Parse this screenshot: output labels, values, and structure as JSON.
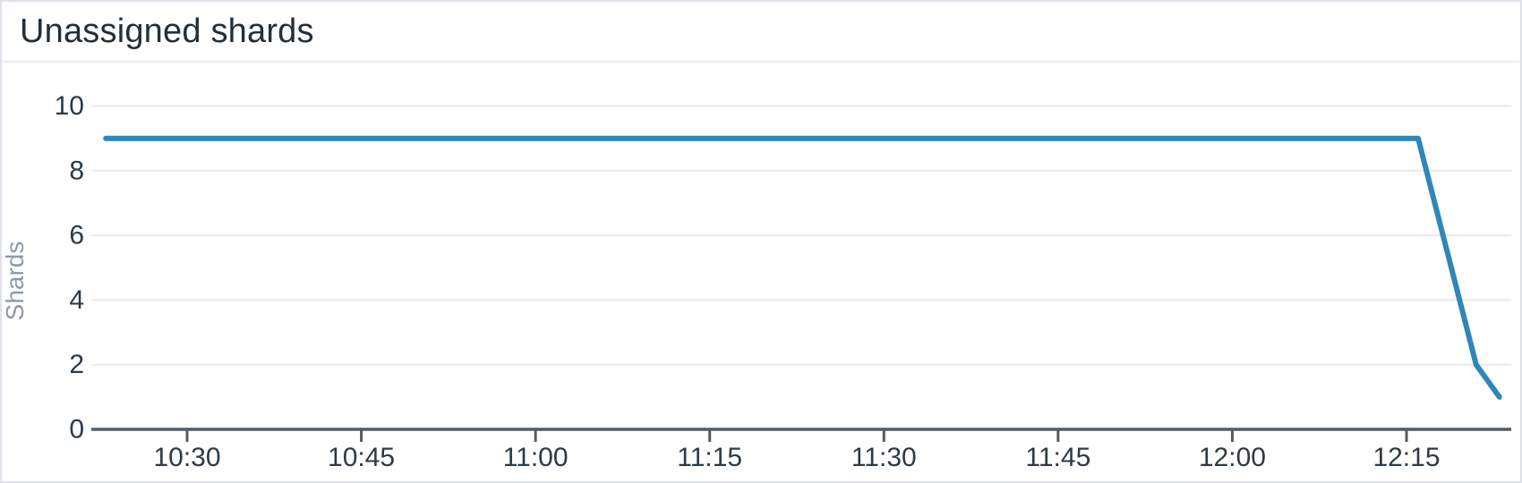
{
  "header": {
    "title": "Unassigned shards"
  },
  "colors": {
    "line": "#2e87b8",
    "axis": "#545b64",
    "grid": "#e9eaec",
    "tick_label": "#2c3a46",
    "axis_title": "#8e99a5",
    "card_title": "#232f3a",
    "card_border": "#e0e1ea",
    "header_divider": "#ebecf1",
    "background": "#ffffff"
  },
  "chart_data": {
    "type": "line",
    "title": "Unassigned shards",
    "xlabel": "",
    "ylabel": "Shards",
    "ylim": [
      0,
      10
    ],
    "yticks": [
      0,
      2,
      4,
      6,
      8,
      10
    ],
    "xticks": [
      "10:30",
      "10:45",
      "11:00",
      "11:15",
      "11:30",
      "11:45",
      "12:00",
      "12:15"
    ],
    "grid": true,
    "legend_position": "none",
    "series": [
      {
        "name": "Unassigned shards",
        "color": "#2e87b8",
        "points": [
          {
            "time": "10:23",
            "value": 9
          },
          {
            "time": "12:16",
            "value": 9
          },
          {
            "time": "12:21",
            "value": 2
          },
          {
            "time": "12:23",
            "value": 1
          }
        ]
      }
    ]
  }
}
